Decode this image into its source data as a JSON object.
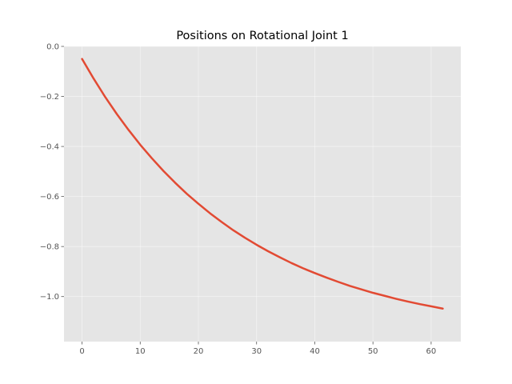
{
  "chart_data": {
    "type": "line",
    "title": "Positions on Rotational Joint 1",
    "xlabel": "",
    "ylabel": "",
    "xlim": [
      -3.1,
      65.1
    ],
    "ylim": [
      -1.18,
      0.0
    ],
    "xticks": [
      0,
      10,
      20,
      30,
      40,
      50,
      60
    ],
    "yticks": [
      0.0,
      -0.2,
      -0.4,
      -0.6,
      -0.8,
      -1.0
    ],
    "ytick_labels": [
      "0.0",
      "−0.2",
      "−0.4",
      "−0.6",
      "−0.8",
      "−1.0"
    ],
    "xtick_labels": [
      "0",
      "10",
      "20",
      "30",
      "40",
      "50",
      "60"
    ],
    "grid": true,
    "background": "#e5e5e5",
    "series": [
      {
        "color": "#e24a33",
        "x": [
          0,
          2,
          4,
          6,
          8,
          10,
          12,
          14,
          16,
          18,
          20,
          22,
          24,
          26,
          28,
          30,
          32,
          34,
          36,
          38,
          40,
          42,
          44,
          46,
          48,
          50,
          52,
          54,
          56,
          58,
          60,
          62
        ],
        "y": [
          -0.05,
          -0.129,
          -0.203,
          -0.271,
          -0.334,
          -0.393,
          -0.447,
          -0.498,
          -0.545,
          -0.589,
          -0.629,
          -0.667,
          -0.702,
          -0.735,
          -0.765,
          -0.793,
          -0.819,
          -0.843,
          -0.866,
          -0.887,
          -0.906,
          -0.924,
          -0.941,
          -0.957,
          -0.971,
          -0.985,
          -0.997,
          -1.009,
          -1.02,
          -1.03,
          -1.039,
          -1.048
        ]
      }
    ]
  }
}
